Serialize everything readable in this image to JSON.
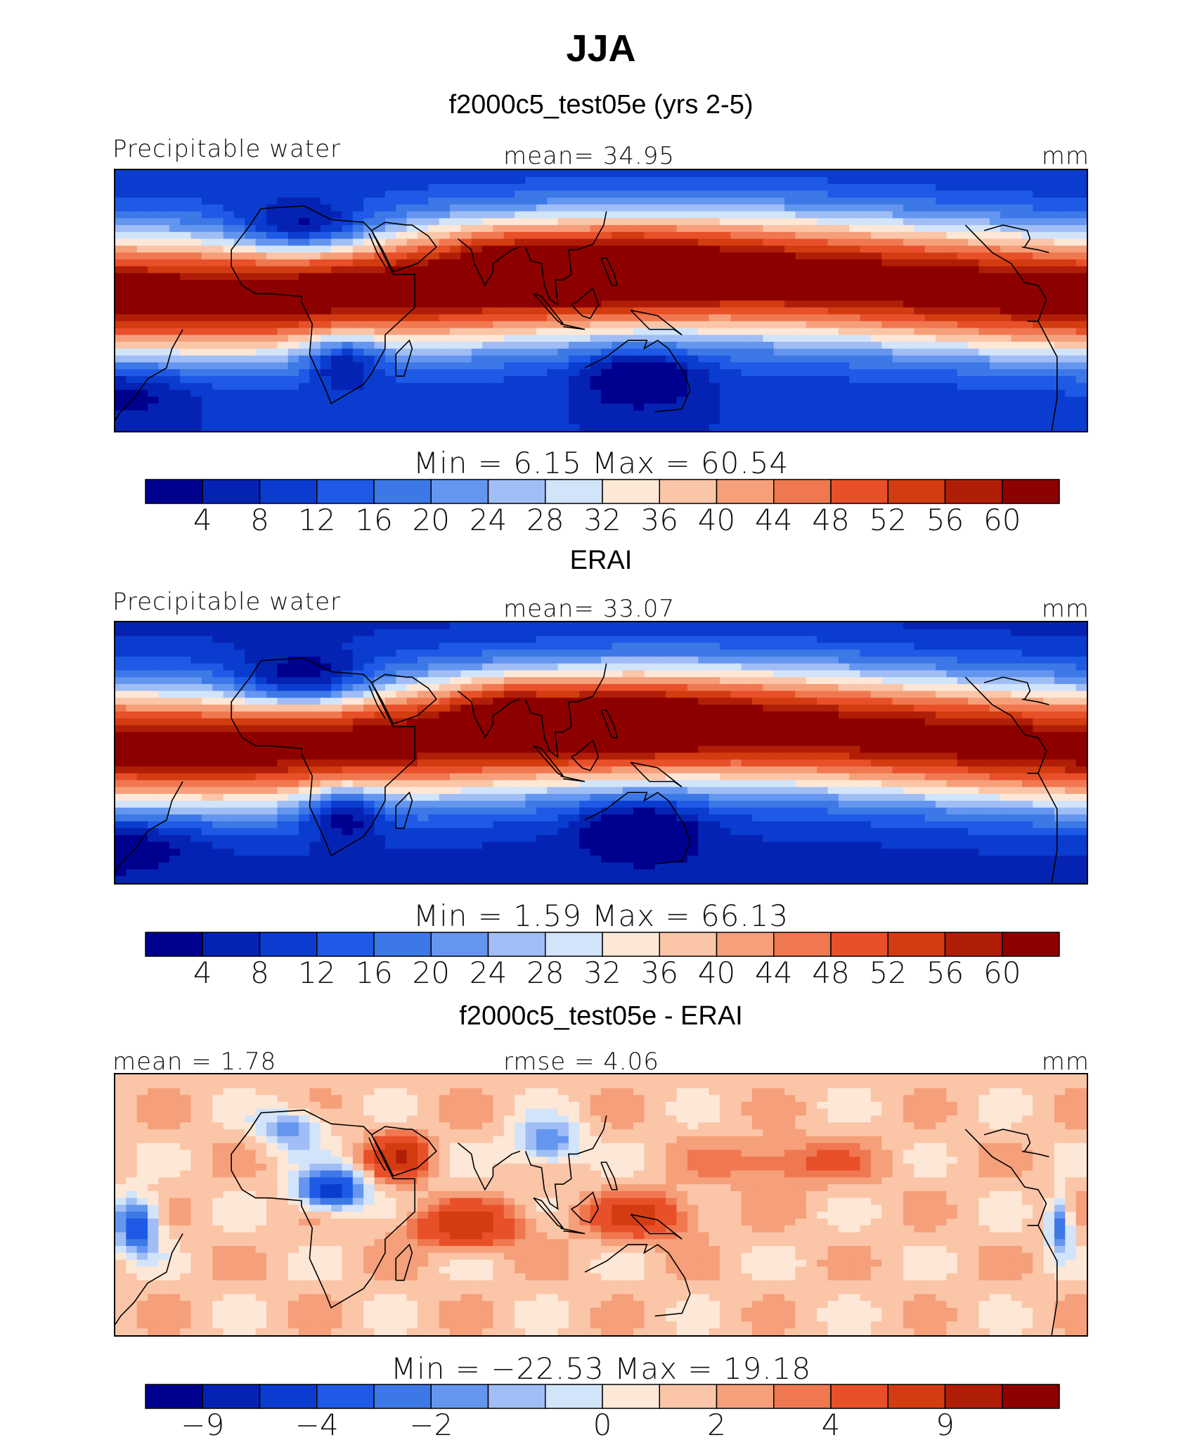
{
  "figure": {
    "title": "JJA"
  },
  "colors": {
    "fill": [
      "#00008f",
      "#0523b3",
      "#0a3ccf",
      "#1e5ae6",
      "#3c78e6",
      "#6496f0",
      "#a0bef5",
      "#d2e4fa",
      "#fde7d6",
      "#fbc5a8",
      "#f5a07a",
      "#f07850",
      "#e8502a",
      "#d23c10",
      "#b01e08",
      "#8c0000"
    ],
    "coast": "#000000"
  },
  "panels": [
    {
      "title": "f2000c5_test05e (yrs 2-5)",
      "left_label": "Precipitable water",
      "center_label": "mean=   34.95",
      "right_label": "mm",
      "minmax": "Min  =    6.15  Max  =   60.54",
      "colorbar_ticks": [
        "4",
        "8",
        "12",
        "16",
        "20",
        "24",
        "28",
        "32",
        "36",
        "40",
        "44",
        "48",
        "52",
        "56",
        "60"
      ],
      "field": "model"
    },
    {
      "title": "ERAI",
      "left_label": "Precipitable water",
      "center_label": "mean=   33.07",
      "right_label": "mm",
      "minmax": "Min  =    1.59  Max  =   66.13",
      "colorbar_ticks": [
        "4",
        "8",
        "12",
        "16",
        "20",
        "24",
        "28",
        "32",
        "36",
        "40",
        "44",
        "48",
        "52",
        "56",
        "60"
      ],
      "field": "obs"
    },
    {
      "title": "f2000c5_test05e - ERAI",
      "left_label": "mean =    1.78",
      "center_label": "rmse =    4.06",
      "right_label": "mm",
      "minmax": "Min  =  −22.53  Max  =   19.18",
      "colorbar_ticks": [
        "−9",
        "−4",
        "−2",
        "0",
        "2",
        "4",
        "9"
      ],
      "field": "diff"
    }
  ],
  "map_extent": {
    "lon_range": [
      -60,
      300
    ],
    "lat_range": [
      -45,
      50
    ]
  }
}
